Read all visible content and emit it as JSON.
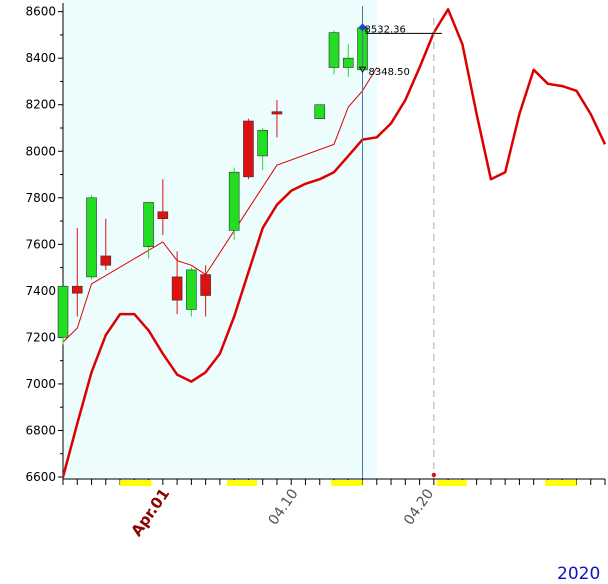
{
  "chart_data": {
    "type": "candlestick",
    "ylim": [
      6600,
      8620
    ],
    "yticks": [
      6600,
      6800,
      7000,
      7200,
      7400,
      7600,
      7800,
      8000,
      8200,
      8400,
      8600
    ],
    "n_slots": 39,
    "x_labels": [
      {
        "slot": 7.5,
        "text": "Apr.01",
        "color": "#8b0000",
        "bold": true
      },
      {
        "slot": 16.5,
        "text": "04.10",
        "color": "#555555",
        "bold": false
      },
      {
        "slot": 26,
        "text": "04.20",
        "color": "#555555",
        "bold": false
      }
    ],
    "year_label": "2020",
    "highlight_until_slot": 22,
    "cursor_slot": 26,
    "candles": [
      {
        "slot": 0,
        "open": 7200,
        "high": 7420,
        "low": 7170,
        "close": 7420
      },
      {
        "slot": 1,
        "open": 7420,
        "high": 7670,
        "low": 7290,
        "close": 7390
      },
      {
        "slot": 2,
        "open": 7460,
        "high": 7810,
        "low": 7450,
        "close": 7800
      },
      {
        "slot": 3,
        "open": 7550,
        "high": 7710,
        "low": 7490,
        "close": 7510
      },
      {
        "slot": 6,
        "open": 7590,
        "high": 7780,
        "low": 7540,
        "close": 7780
      },
      {
        "slot": 7,
        "open": 7740,
        "high": 7880,
        "low": 7640,
        "close": 7710
      },
      {
        "slot": 8,
        "open": 7460,
        "high": 7570,
        "low": 7300,
        "close": 7360
      },
      {
        "slot": 9,
        "open": 7320,
        "high": 7500,
        "low": 7290,
        "close": 7490
      },
      {
        "slot": 10,
        "open": 7470,
        "high": 7510,
        "low": 7290,
        "close": 7380
      },
      {
        "slot": 12,
        "open": 7660,
        "high": 7930,
        "low": 7620,
        "close": 7910
      },
      {
        "slot": 13,
        "open": 8130,
        "high": 8140,
        "low": 7880,
        "close": 7890
      },
      {
        "slot": 14,
        "open": 7980,
        "high": 8100,
        "low": 7920,
        "close": 8090
      },
      {
        "slot": 15,
        "open": 8170,
        "high": 8220,
        "low": 8060,
        "close": 8160
      },
      {
        "slot": 18,
        "open": 8140,
        "high": 8200,
        "low": 8140,
        "close": 8200
      },
      {
        "slot": 19,
        "open": 8360,
        "high": 8520,
        "low": 8330,
        "close": 8510
      },
      {
        "slot": 20,
        "open": 8360,
        "high": 8460,
        "low": 8320,
        "close": 8400
      },
      {
        "slot": 21,
        "open": 8350,
        "high": 8532.36,
        "low": 8348.5,
        "close": 8530
      }
    ],
    "ma_thin": [
      [
        0,
        7180
      ],
      [
        1,
        7240
      ],
      [
        2,
        7430
      ],
      [
        7,
        7610
      ],
      [
        8,
        7530
      ],
      [
        9,
        7510
      ],
      [
        10,
        7470
      ],
      [
        15,
        7940
      ],
      [
        19,
        8030
      ],
      [
        20,
        8190
      ],
      [
        21,
        8260
      ],
      [
        22,
        8360
      ]
    ],
    "ma_thick": [
      [
        0,
        6600
      ],
      [
        1,
        6830
      ],
      [
        2,
        7050
      ],
      [
        3,
        7210
      ],
      [
        4,
        7300
      ],
      [
        5,
        7300
      ],
      [
        6,
        7230
      ],
      [
        7,
        7130
      ],
      [
        8,
        7040
      ],
      [
        9,
        7010
      ],
      [
        10,
        7050
      ],
      [
        11,
        7130
      ],
      [
        12,
        7290
      ],
      [
        13,
        7480
      ],
      [
        14,
        7670
      ],
      [
        15,
        7770
      ],
      [
        16,
        7830
      ],
      [
        17,
        7860
      ],
      [
        18,
        7880
      ],
      [
        19,
        7910
      ],
      [
        20,
        7980
      ],
      [
        21,
        8050
      ],
      [
        22,
        8060
      ],
      [
        23,
        8120
      ],
      [
        24,
        8220
      ],
      [
        25,
        8360
      ],
      [
        26,
        8510
      ],
      [
        27,
        8610
      ],
      [
        28,
        8460
      ],
      [
        29,
        8160
      ],
      [
        30,
        7880
      ],
      [
        31,
        7910
      ],
      [
        32,
        8160
      ],
      [
        33,
        8350
      ],
      [
        34,
        8290
      ],
      [
        35,
        8280
      ],
      [
        36,
        8260
      ],
      [
        37,
        8160
      ],
      [
        38,
        8030
      ]
    ],
    "annotations": {
      "high_value": "8532.36",
      "low_value": "8348.50",
      "colors": {
        "up": "#22dd22",
        "down": "#dd1111",
        "ma": "#dd0000",
        "highlight": "#edfdfd",
        "cursor": "#4477aa",
        "axis_marker": "#ffff00",
        "year": "#1010c8"
      }
    }
  }
}
